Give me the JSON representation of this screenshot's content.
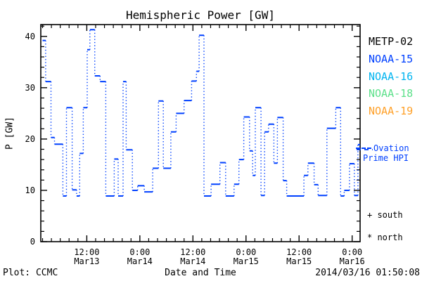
{
  "title": "Hemispheric Power [GW]",
  "colors": {
    "background": "#ffffff",
    "axis_black": "#000000",
    "noaa15_blue": "#0040ff",
    "noaa16_cyan": "#00b4f0",
    "noaa18_green": "#5ce08a",
    "noaa19_orange": "#ffa028"
  },
  "legend": {
    "satellites": [
      {
        "label": "METP-02",
        "color": "#000000"
      },
      {
        "label": "NOAA-15",
        "color": "#0040ff"
      },
      {
        "label": "NOAA-16",
        "color": "#00b4f0"
      },
      {
        "label": "NOAA-18",
        "color": "#5ce08a"
      },
      {
        "label": "NOAA-19",
        "color": "#ffa028"
      }
    ]
  },
  "ovation": {
    "line1": "Ovation",
    "line2": "Prime HPI"
  },
  "markers": {
    "south": "+ south",
    "north": "* north"
  },
  "footer": {
    "left": "Plot: CCMC",
    "center": "Date and Time",
    "right": "2014/03/16 01:50:08"
  },
  "chart_data": {
    "type": "line",
    "mode": "step-histogram",
    "series": [
      {
        "name": "NOAA-15 hemispheric power",
        "color": "#0040ff"
      }
    ],
    "title": "Hemispheric Power [GW]",
    "xlabel": "Date and Time",
    "ylabel": "P [GW]",
    "ylim": [
      0,
      42.3
    ],
    "x_unit": "hours since 2014-03-13 00:00 UT",
    "xlim_hours": [
      1.6,
      73.8
    ],
    "x_end_hours": 73.8,
    "grid": false,
    "x_major_ticks": [
      {
        "hour": 12,
        "time": "12:00",
        "date": "Mar13"
      },
      {
        "hour": 24,
        "time": "0:00",
        "date": "Mar14"
      },
      {
        "hour": 36,
        "time": "12:00",
        "date": "Mar14"
      },
      {
        "hour": 48,
        "time": "0:00",
        "date": "Mar15"
      },
      {
        "hour": 60,
        "time": "12:00",
        "date": "Mar15"
      },
      {
        "hour": 72,
        "time": "0:00",
        "date": "Mar16"
      }
    ],
    "y_major_ticks": [
      0,
      10,
      20,
      30,
      40
    ],
    "minor_tick_step_x_hours": 2,
    "minor_tick_step_y_gw": 2,
    "steps_hour_value": [
      [
        2.0,
        39.2
      ],
      [
        2.7,
        31.2
      ],
      [
        3.9,
        20.3
      ],
      [
        4.7,
        19.0
      ],
      [
        6.6,
        8.9
      ],
      [
        7.4,
        26.1
      ],
      [
        8.7,
        10.1
      ],
      [
        9.7,
        8.9
      ],
      [
        10.4,
        17.2
      ],
      [
        11.2,
        26.1
      ],
      [
        12.1,
        37.4
      ],
      [
        12.7,
        41.3
      ],
      [
        13.8,
        32.3
      ],
      [
        15.0,
        31.2
      ],
      [
        16.3,
        8.9
      ],
      [
        18.2,
        16.1
      ],
      [
        19.1,
        8.9
      ],
      [
        20.2,
        31.2
      ],
      [
        20.9,
        17.9
      ],
      [
        22.3,
        10.0
      ],
      [
        23.5,
        10.9
      ],
      [
        25.0,
        9.7
      ],
      [
        26.9,
        14.3
      ],
      [
        28.2,
        27.4
      ],
      [
        29.3,
        14.3
      ],
      [
        31.0,
        21.4
      ],
      [
        32.2,
        25.0
      ],
      [
        34.0,
        27.5
      ],
      [
        35.7,
        31.3
      ],
      [
        36.8,
        33.2
      ],
      [
        37.4,
        40.2
      ],
      [
        38.5,
        8.9
      ],
      [
        40.1,
        11.2
      ],
      [
        42.1,
        15.4
      ],
      [
        43.4,
        8.9
      ],
      [
        45.3,
        11.2
      ],
      [
        46.4,
        16.0
      ],
      [
        47.5,
        24.3
      ],
      [
        48.8,
        17.7
      ],
      [
        49.5,
        12.9
      ],
      [
        50.1,
        26.1
      ],
      [
        51.4,
        9.0
      ],
      [
        52.2,
        21.4
      ],
      [
        53.1,
        22.9
      ],
      [
        54.3,
        15.3
      ],
      [
        55.1,
        24.2
      ],
      [
        56.4,
        11.9
      ],
      [
        57.2,
        8.9
      ],
      [
        61.1,
        12.9
      ],
      [
        62.0,
        15.3
      ],
      [
        63.4,
        11.1
      ],
      [
        64.3,
        9.0
      ],
      [
        66.3,
        22.1
      ],
      [
        68.3,
        26.1
      ],
      [
        69.4,
        8.9
      ],
      [
        70.2,
        10.0
      ],
      [
        71.4,
        15.2
      ],
      [
        72.5,
        9.0
      ],
      [
        73.3,
        18.9
      ]
    ]
  }
}
